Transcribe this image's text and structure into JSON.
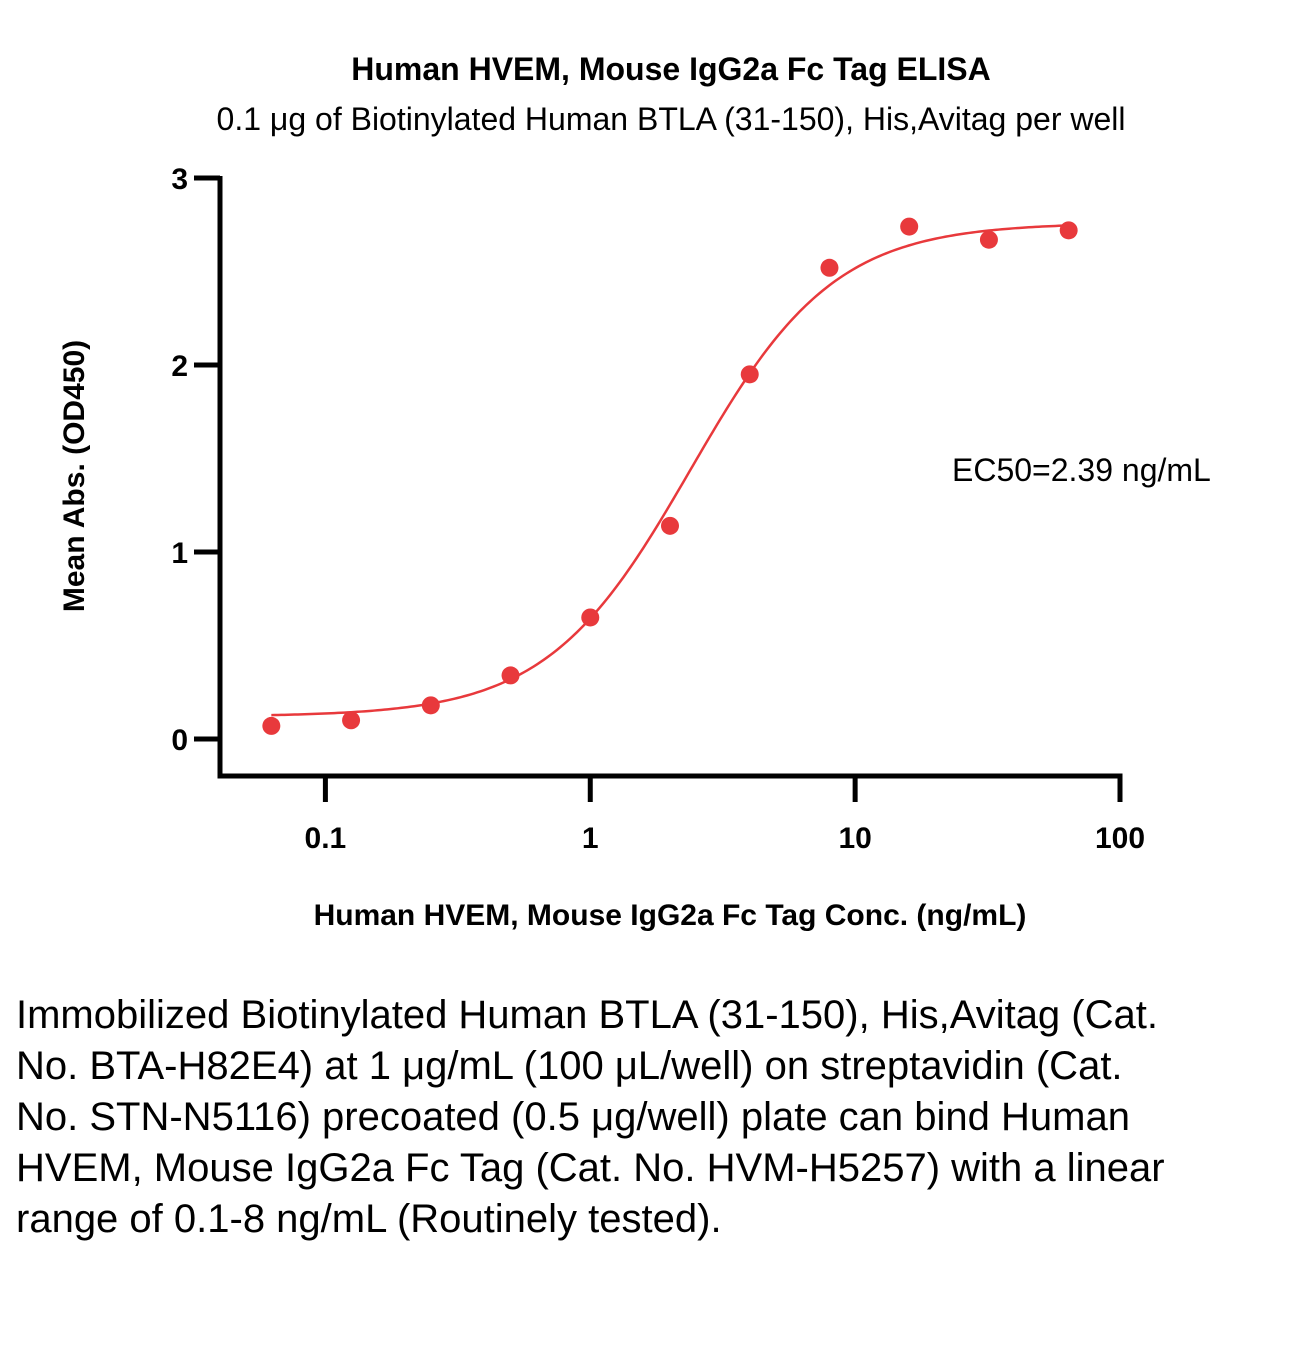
{
  "chart_data": {
    "type": "scatter",
    "title": "Human HVEM, Mouse IgG2a Fc Tag ELISA",
    "subtitle": "0.1 μg of Biotinylated Human BTLA (31-150), His,Avitag per well",
    "xlabel": "Human HVEM, Mouse IgG2a Fc Tag Conc. (ng/mL)",
    "ylabel": "Mean Abs. (OD450)",
    "xscale": "log",
    "xlim": [
      0.04,
      100
    ],
    "ylim": [
      -0.2,
      3
    ],
    "xticks": [
      0.1,
      1,
      10,
      100
    ],
    "xtick_labels": [
      "0.1",
      "1",
      "10",
      "100"
    ],
    "yticks": [
      0,
      1,
      2,
      3
    ],
    "ytick_labels": [
      "0",
      "1",
      "2",
      "3"
    ],
    "grid": false,
    "color": "#e8393c",
    "series": [
      {
        "x": [
          0.0625,
          0.125,
          0.25,
          0.5,
          1,
          2,
          4,
          8,
          16,
          32,
          64
        ],
        "y": [
          0.07,
          0.1,
          0.18,
          0.34,
          0.65,
          1.14,
          1.95,
          2.52,
          2.74,
          2.67,
          2.72
        ]
      }
    ],
    "fit": {
      "model": "4PL",
      "bottom": 0.12,
      "top": 2.76,
      "ec50": 2.39,
      "hill": 1.6
    },
    "annotation": "EC50=2.39 ng/mL"
  },
  "caption": "Immobilized Biotinylated Human BTLA (31-150), His,Avitag (Cat. No. BTA-H82E4) at 1 μg/mL (100 μL/well) on streptavidin (Cat. No. STN-N5116) precoated (0.5 μg/well) plate can bind Human HVEM, Mouse IgG2a Fc Tag (Cat. No. HVM-H5257) with a linear range of 0.1-8 ng/mL (Routinely tested)."
}
